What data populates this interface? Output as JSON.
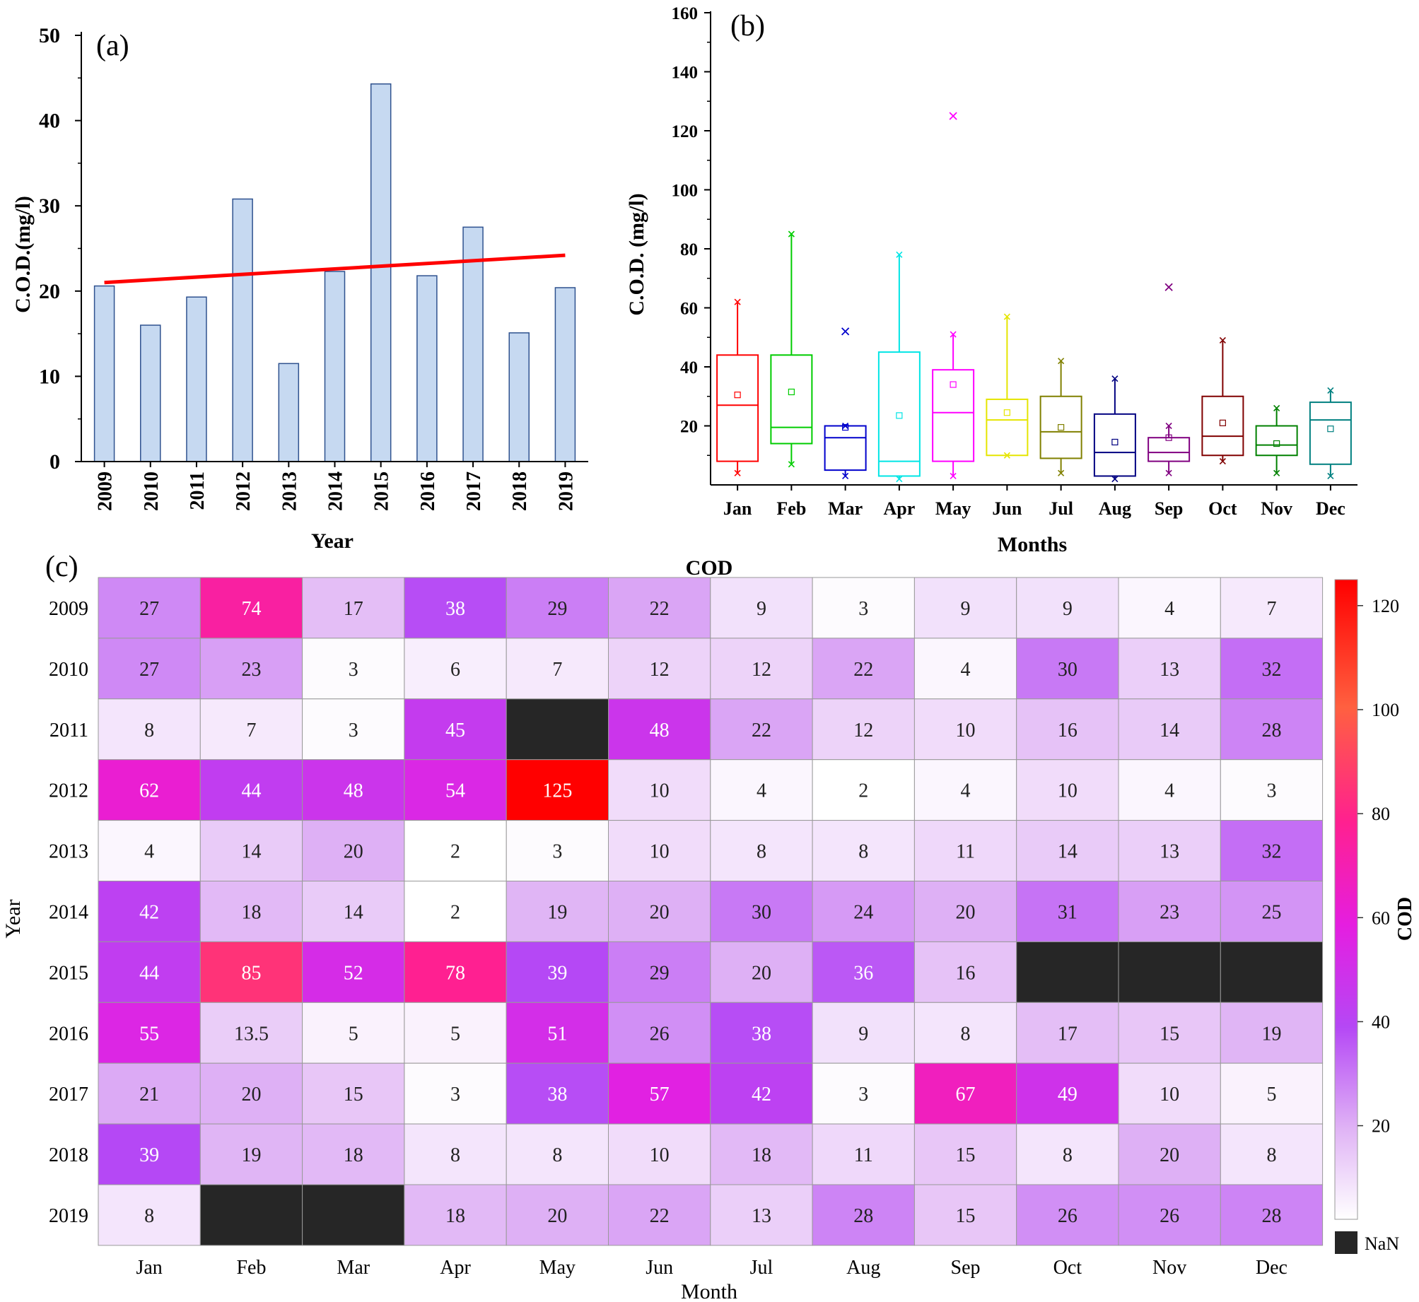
{
  "chart_data": [
    {
      "type": "bar",
      "panel_label": "(a)",
      "title": "",
      "xlabel": "Year",
      "ylabel": "C.O.D.(mg/l)",
      "ylim": [
        0,
        50
      ],
      "yticks": [
        0,
        10,
        20,
        30,
        40,
        50
      ],
      "categories": [
        "2009",
        "2010",
        "2011",
        "2012",
        "2013",
        "2014",
        "2015",
        "2016",
        "2017",
        "2018",
        "2019"
      ],
      "values": [
        20.6,
        16.0,
        19.3,
        30.8,
        11.5,
        22.3,
        44.3,
        21.8,
        27.5,
        15.1,
        20.4
      ],
      "trend_line": {
        "start": 21.0,
        "end": 24.2
      },
      "colors": {
        "bar_fill": "#c6d9f1",
        "bar_stroke": "#2f528f",
        "trend": "#ff0000"
      }
    },
    {
      "type": "box",
      "panel_label": "(b)",
      "xlabel": "Months",
      "ylabel": "C.O.D. (mg/l)",
      "ylim": [
        0,
        160
      ],
      "yticks": [
        20,
        40,
        60,
        80,
        100,
        120,
        140,
        160
      ],
      "categories": [
        "Jan",
        "Feb",
        "Mar",
        "Apr",
        "May",
        "Jun",
        "Jul",
        "Aug",
        "Sep",
        "Oct",
        "Nov",
        "Dec"
      ],
      "boxes": [
        {
          "min": 4,
          "q1": 8,
          "median": 27,
          "q3": 44,
          "max": 62,
          "mean": 30.5,
          "outliers": [],
          "color": "#ff0000"
        },
        {
          "min": 7,
          "q1": 14,
          "median": 19.5,
          "q3": 44,
          "max": 85,
          "mean": 31.5,
          "outliers": [],
          "color": "#00cc00"
        },
        {
          "min": 3,
          "q1": 5,
          "median": 16,
          "q3": 20,
          "max": 20,
          "mean": 19.5,
          "outliers": [
            52
          ],
          "color": "#0000cc"
        },
        {
          "min": 2,
          "q1": 3,
          "median": 8,
          "q3": 45,
          "max": 78,
          "mean": 23.5,
          "outliers": [],
          "color": "#00e5e5"
        },
        {
          "min": 3,
          "q1": 8,
          "median": 24.5,
          "q3": 39,
          "max": 51,
          "mean": 34,
          "outliers": [
            125
          ],
          "color": "#ff00ff"
        },
        {
          "min": 10,
          "q1": 10,
          "median": 22,
          "q3": 29,
          "max": 57,
          "mean": 24.5,
          "outliers": [],
          "color": "#e5e500"
        },
        {
          "min": 4,
          "q1": 9,
          "median": 18,
          "q3": 30,
          "max": 42,
          "mean": 19.5,
          "outliers": [],
          "color": "#808000"
        },
        {
          "min": 2,
          "q1": 3,
          "median": 11,
          "q3": 24,
          "max": 36,
          "mean": 14.5,
          "outliers": [],
          "color": "#000080"
        },
        {
          "min": 4,
          "q1": 8,
          "median": 11,
          "q3": 16,
          "max": 20,
          "mean": 16,
          "outliers": [
            67
          ],
          "color": "#800080"
        },
        {
          "min": 8,
          "q1": 10,
          "median": 16.5,
          "q3": 30,
          "max": 49,
          "mean": 21,
          "outliers": [],
          "color": "#800000"
        },
        {
          "min": 4,
          "q1": 10,
          "median": 13.5,
          "q3": 20,
          "max": 26,
          "mean": 14,
          "outliers": [],
          "color": "#008000"
        },
        {
          "min": 3,
          "q1": 7,
          "median": 22,
          "q3": 28,
          "max": 32,
          "mean": 19,
          "outliers": [],
          "color": "#008080"
        }
      ]
    },
    {
      "type": "heatmap",
      "panel_label": "(c)",
      "title": "COD",
      "xlabel": "Month",
      "ylabel": "Year",
      "x": [
        "Jan",
        "Feb",
        "Mar",
        "Apr",
        "May",
        "Jun",
        "Jul",
        "Aug",
        "Sep",
        "Oct",
        "Nov",
        "Dec"
      ],
      "y": [
        "2009",
        "2010",
        "2011",
        "2012",
        "2013",
        "2014",
        "2015",
        "2016",
        "2017",
        "2018",
        "2019"
      ],
      "values": [
        [
          27,
          74,
          17,
          38,
          29,
          22,
          9,
          3,
          9,
          9,
          4,
          7
        ],
        [
          27,
          23,
          3,
          6,
          7,
          12,
          12,
          22,
          4,
          30,
          13,
          32
        ],
        [
          8,
          7,
          3,
          45,
          null,
          48,
          22,
          12,
          10,
          16,
          14,
          28
        ],
        [
          62,
          44,
          48,
          54,
          125,
          10,
          4,
          2,
          4,
          10,
          4,
          3
        ],
        [
          4,
          14,
          20,
          2,
          3,
          10,
          8,
          8,
          11,
          14,
          13,
          32
        ],
        [
          42,
          18,
          14,
          2,
          19,
          20,
          30,
          24,
          20,
          31,
          23,
          25
        ],
        [
          44,
          85,
          52,
          78,
          39,
          29,
          20,
          36,
          16,
          null,
          null,
          null
        ],
        [
          55,
          13.5,
          5,
          5,
          51,
          26,
          38,
          9,
          8,
          17,
          15,
          19
        ],
        [
          21,
          20,
          15,
          3,
          38,
          57,
          42,
          3,
          67,
          49,
          10,
          5
        ],
        [
          39,
          19,
          18,
          8,
          8,
          10,
          18,
          11,
          15,
          8,
          20,
          8
        ],
        [
          8,
          null,
          null,
          18,
          20,
          22,
          13,
          28,
          15,
          26,
          26,
          28
        ]
      ],
      "colorbar": {
        "label": "COD",
        "range": [
          2,
          125
        ],
        "ticks": [
          20,
          40,
          60,
          80,
          100,
          120
        ],
        "nan_label": "NaN"
      },
      "colors": {
        "nan": "#262626",
        "grid": "#999999"
      }
    }
  ]
}
